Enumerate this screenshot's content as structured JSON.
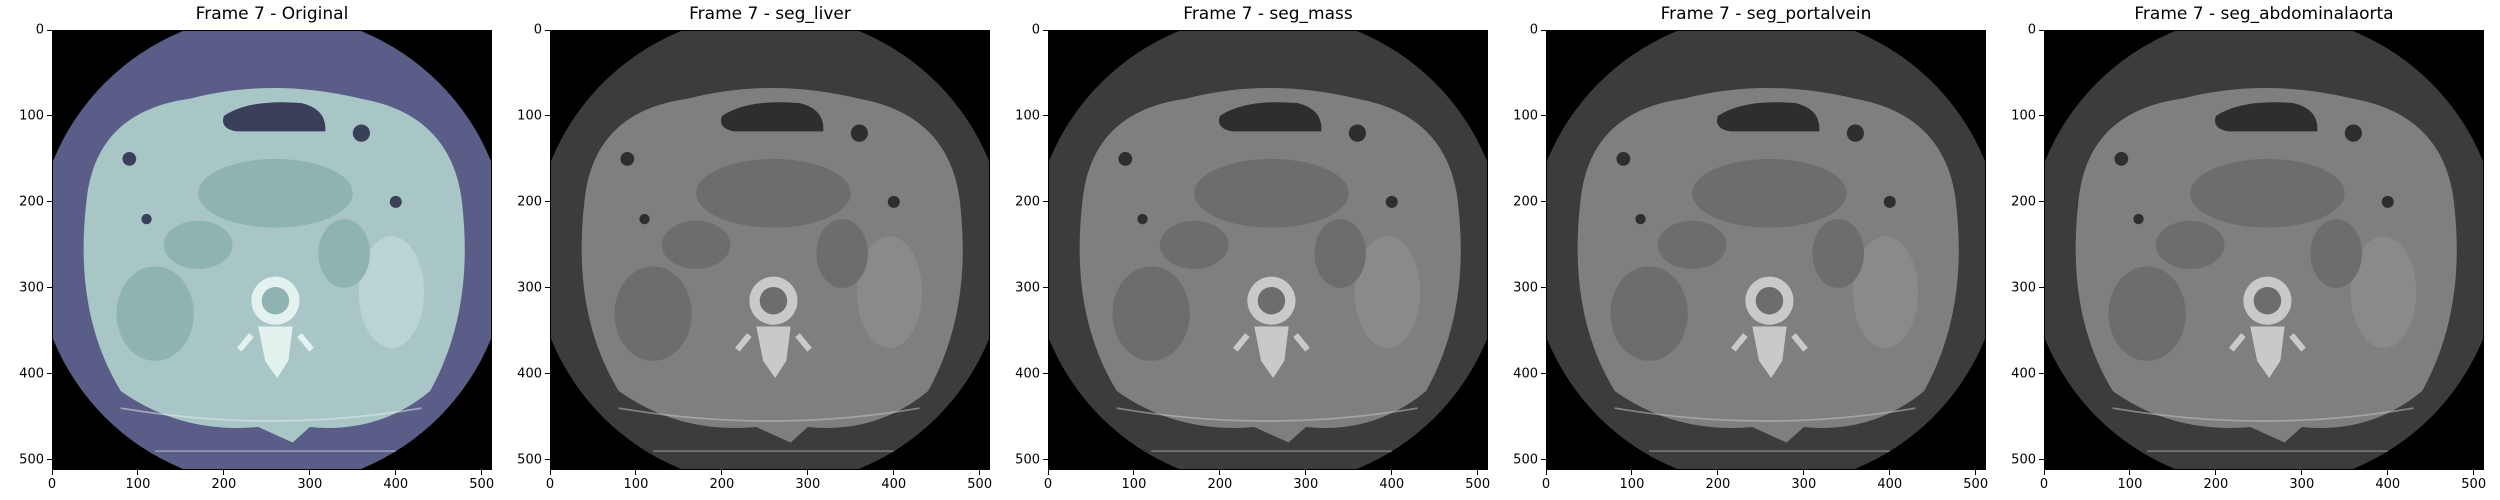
{
  "panels": [
    {
      "title": "Frame 7 - Original",
      "variant": "original"
    },
    {
      "title": "Frame 7 - seg_liver",
      "variant": "gray"
    },
    {
      "title": "Frame 7 - seg_mass",
      "variant": "gray"
    },
    {
      "title": "Frame 7 - seg_portalvein",
      "variant": "gray"
    },
    {
      "title": "Frame 7 - seg_abdominalaorta",
      "variant": "gray"
    }
  ],
  "x_ticks": [
    "0",
    "100",
    "200",
    "300",
    "400",
    "500"
  ],
  "y_ticks": [
    "0",
    "100",
    "200",
    "300",
    "400",
    "500"
  ],
  "tick_values": [
    0,
    100,
    200,
    300,
    400,
    500
  ],
  "image_extent": 512,
  "colors": {
    "original_body": "#a9c6c6",
    "original_ring": "#5a5d87",
    "gray_body": "#7f7f7f",
    "gray_ring": "#3c3c3c",
    "background": "#000000"
  }
}
